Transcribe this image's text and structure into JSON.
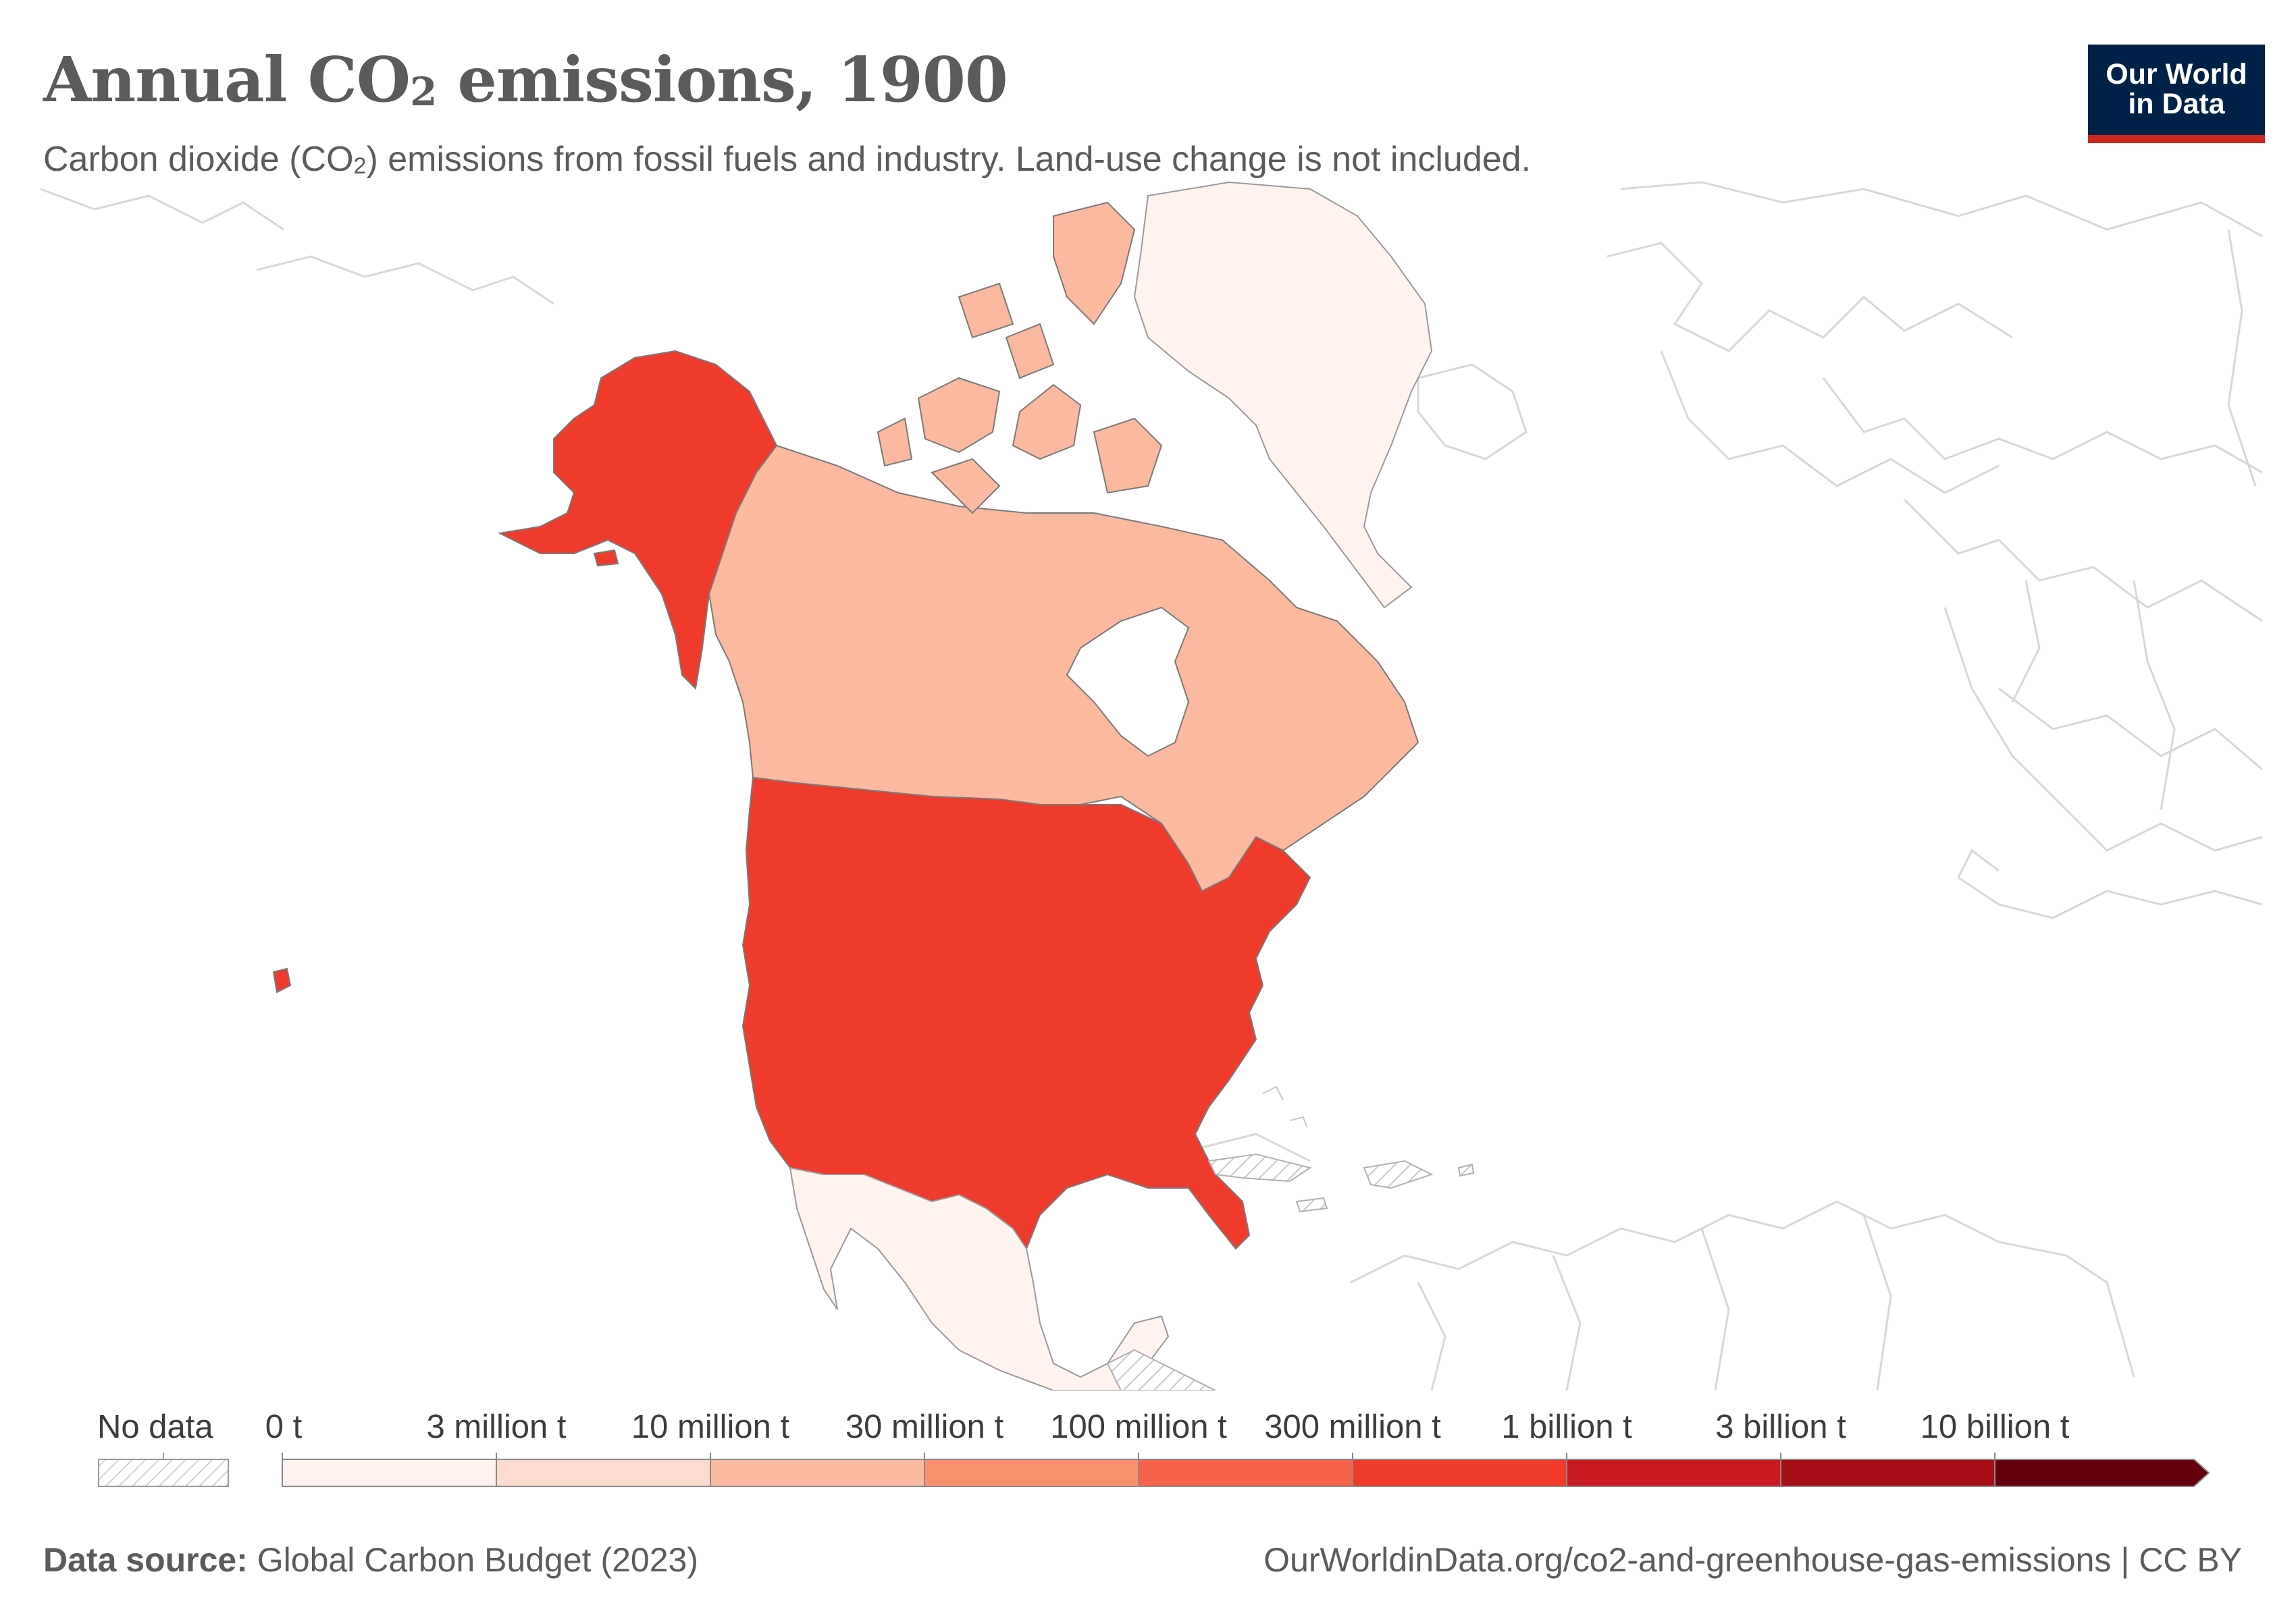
{
  "header": {
    "title_prefix": "Annual CO",
    "title_sub": "2",
    "title_suffix": " emissions, 1900",
    "subtitle_prefix": "Carbon dioxide (CO",
    "subtitle_sub": "2",
    "subtitle_suffix": ") emissions from fossil fuels and industry. Land-use change is not included."
  },
  "logo": {
    "line1": "Our World",
    "line2": "in Data"
  },
  "map_data": {
    "year": "1900",
    "region_shown": "North America",
    "countries": [
      {
        "name": "United States",
        "bin": "300 million t – 1 billion t",
        "color": "#ef3b2c"
      },
      {
        "name": "Canada",
        "bin": "10 million t – 30 million t",
        "color": "#fbb99f"
      },
      {
        "name": "Greenland",
        "bin": "0 t – 3 million t",
        "color": "#fff3ef"
      },
      {
        "name": "Mexico",
        "bin": "0 t – 3 million t",
        "color": "#fff3ef"
      },
      {
        "name": "Guatemala",
        "bin": "No data",
        "color": "hatched"
      },
      {
        "name": "Caribbean islands",
        "bin": "No data",
        "color": "hatched"
      }
    ]
  },
  "legend": {
    "no_data_label": "No data",
    "ticks": [
      "0 t",
      "3 million t",
      "10 million t",
      "30 million t",
      "100 million t",
      "300 million t",
      "1 billion t",
      "3 billion t",
      "10 billion t"
    ],
    "colors": [
      "#fff3ef",
      "#fddccf",
      "#fbb99f",
      "#f9916f",
      "#f6634a",
      "#ef3b2c",
      "#c91b1f",
      "#a50f15",
      "#67000d"
    ]
  },
  "footer": {
    "source_label": "Data source:",
    "source_value": " Global Carbon Budget (2023)",
    "url": "OurWorldinData.org/co2-and-greenhouse-gas-emissions | CC BY"
  }
}
